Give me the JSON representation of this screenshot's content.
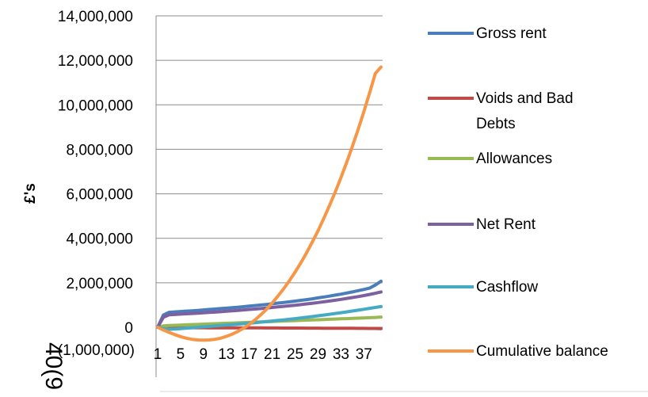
{
  "chart_data": {
    "type": "line",
    "ylabel": "£'s",
    "xlabel": "",
    "ylim": [
      -1000000,
      14000000
    ],
    "y_ticks": [
      -1000000,
      0,
      2000000,
      4000000,
      6000000,
      8000000,
      10000000,
      12000000,
      14000000
    ],
    "y_tick_labels": [
      "(1,000,000)",
      "0",
      "2,000,000",
      "4,000,000",
      "6,000,000",
      "8,000,000",
      "10,000,000",
      "12,000,000",
      "14,000,000"
    ],
    "x_tick_labels": [
      "1",
      "5",
      "9",
      "13",
      "17",
      "21",
      "25",
      "29",
      "33",
      "37"
    ],
    "x": [
      1,
      2,
      3,
      4,
      5,
      6,
      7,
      8,
      9,
      10,
      11,
      12,
      13,
      14,
      15,
      16,
      17,
      18,
      19,
      20,
      21,
      22,
      23,
      24,
      25,
      26,
      27,
      28,
      29,
      30,
      31,
      32,
      33,
      34,
      35,
      36,
      37,
      38,
      39,
      40
    ],
    "overlapping_text": "40(9",
    "legend_position": "right",
    "series": [
      {
        "name": "Gross rent",
        "color": "#4a7ebb",
        "values": [
          0,
          550000,
          675000,
          690000,
          710000,
          725000,
          740000,
          760000,
          780000,
          800000,
          820000,
          840000,
          860000,
          880000,
          900000,
          925000,
          950000,
          975000,
          1000000,
          1025000,
          1055000,
          1085000,
          1115000,
          1145000,
          1175000,
          1210000,
          1245000,
          1280000,
          1320000,
          1360000,
          1400000,
          1445000,
          1490000,
          1540000,
          1590000,
          1645000,
          1700000,
          1760000,
          1900000,
          2070000
        ]
      },
      {
        "name": "Voids and Bad Debts",
        "color": "#be4b48",
        "values": [
          0,
          -10000,
          -20000,
          -20000,
          -21000,
          -22000,
          -22000,
          -23000,
          -23000,
          -24000,
          -25000,
          -25000,
          -26000,
          -27000,
          -27000,
          -28000,
          -29000,
          -30000,
          -30000,
          -31000,
          -32000,
          -33000,
          -34000,
          -35000,
          -36000,
          -37000,
          -38000,
          -39000,
          -40000,
          -41000,
          -42000,
          -44000,
          -45000,
          -46000,
          -48000,
          -49000,
          -51000,
          -53000,
          -55000,
          -60000
        ]
      },
      {
        "name": "Allowances",
        "color": "#98b954",
        "values": [
          0,
          60000,
          80000,
          90000,
          100000,
          110000,
          120000,
          130000,
          140000,
          150000,
          160000,
          170000,
          180000,
          190000,
          200000,
          210000,
          220000,
          230000,
          240000,
          250000,
          260000,
          270000,
          280000,
          290000,
          300000,
          310000,
          320000,
          330000,
          340000,
          350000,
          360000,
          370000,
          380000,
          390000,
          400000,
          410000,
          420000,
          430000,
          440000,
          460000
        ]
      },
      {
        "name": "Net Rent",
        "color": "#7d60a0",
        "values": [
          0,
          450000,
          560000,
          575000,
          590000,
          605000,
          620000,
          635000,
          650000,
          665000,
          680000,
          700000,
          720000,
          740000,
          760000,
          780000,
          800000,
          820000,
          840000,
          865000,
          890000,
          915000,
          940000,
          965000,
          990000,
          1020000,
          1050000,
          1080000,
          1110000,
          1145000,
          1180000,
          1215000,
          1255000,
          1295000,
          1335000,
          1380000,
          1425000,
          1475000,
          1530000,
          1590000
        ]
      },
      {
        "name": "Cashflow",
        "color": "#46aac5",
        "values": [
          0,
          -60000,
          -90000,
          -80000,
          -60000,
          -40000,
          -20000,
          0,
          20000,
          40000,
          60000,
          80000,
          100000,
          120000,
          140000,
          160000,
          180000,
          205000,
          230000,
          255000,
          280000,
          305000,
          330000,
          360000,
          390000,
          420000,
          450000,
          480000,
          515000,
          550000,
          585000,
          620000,
          655000,
          690000,
          730000,
          770000,
          810000,
          850000,
          890000,
          930000
        ]
      },
      {
        "name": "Cumulative balance",
        "color": "#f79646",
        "values": [
          0,
          -120000,
          -230000,
          -330000,
          -420000,
          -490000,
          -540000,
          -570000,
          -580000,
          -570000,
          -540000,
          -490000,
          -410000,
          -310000,
          -190000,
          -40000,
          130000,
          330000,
          560000,
          810000,
          1090000,
          1400000,
          1730000,
          2090000,
          2480000,
          2900000,
          3350000,
          3830000,
          4340000,
          4890000,
          5470000,
          6080000,
          6730000,
          7410000,
          8130000,
          8890000,
          9690000,
          10530000,
          11410000,
          11700000
        ]
      }
    ]
  }
}
